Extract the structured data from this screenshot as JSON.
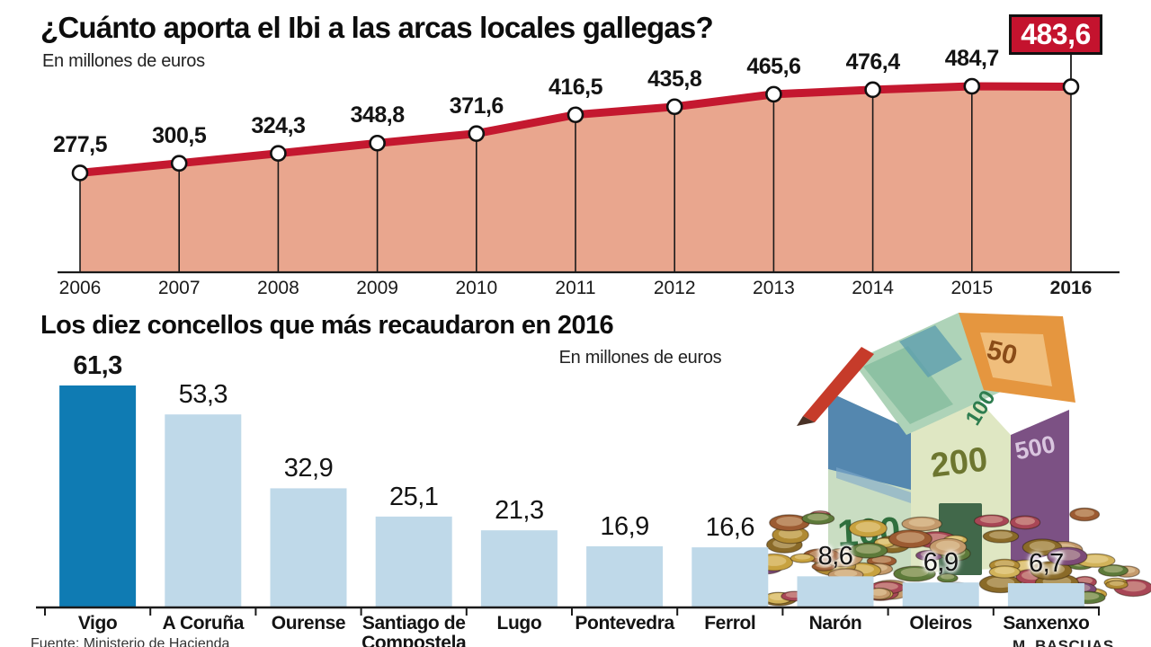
{
  "page": {
    "title": "¿Cuánto aporta el Ibi a las arcas locales gallegas?",
    "units_note": "En millones de euros",
    "source": "Fuente: Ministerio de Hacienda",
    "credit": "M. BASCUAS"
  },
  "colors": {
    "accent_red": "#c4182f",
    "badge_red": "#c4132e",
    "area_salmon": "#e9a68e",
    "bar_highlight": "#0f7bb3",
    "bar_normal": "#bfd9e9",
    "axis_black": "#1a1a1a",
    "coin_palette": [
      "#c8a23f",
      "#b08a33",
      "#8a6a28",
      "#9c5b32",
      "#d2b35a",
      "#a84656",
      "#7c4a78",
      "#5d7a3a",
      "#c49a6c"
    ]
  },
  "illustration": {
    "name": "money-house",
    "denominations": [
      "100",
      "200",
      "500",
      "50"
    ]
  },
  "chart_data": [
    {
      "type": "area",
      "title": "¿Cuánto aporta el Ibi a las arcas locales gallegas?",
      "units": "En millones de euros",
      "x_labels": [
        "2006",
        "2007",
        "2008",
        "2009",
        "2010",
        "2011",
        "2012",
        "2013",
        "2014",
        "2015",
        "2016"
      ],
      "values": [
        277.5,
        300.5,
        324.3,
        348.8,
        371.6,
        416.5,
        435.8,
        465.6,
        476.4,
        484.7,
        483.6
      ],
      "value_labels": [
        "277,5",
        "300,5",
        "324,3",
        "348,8",
        "371,6",
        "416,5",
        "435,8",
        "465,6",
        "476,4",
        "484,7",
        "483,6"
      ],
      "highlight": {
        "index": 10,
        "label": "483,6"
      },
      "ylim": [
        40,
        520
      ],
      "grid": false,
      "legend": "none",
      "colors": {
        "line": "#c4182f",
        "area": "#e9a68e",
        "marker": "#ffffff"
      }
    },
    {
      "type": "bar",
      "title": "Los diez concellos que más recaudaron en 2016",
      "units": "En millones de euros",
      "categories": [
        "Vigo",
        "A Coruña",
        "Ourense",
        "Santiago de Compostela",
        "Lugo",
        "Pontevedra",
        "Ferrol",
        "Narón",
        "Oleiros",
        "Sanxenxo"
      ],
      "values": [
        61.3,
        53.3,
        32.9,
        25.1,
        21.3,
        16.9,
        16.6,
        8.6,
        6.9,
        6.7
      ],
      "value_labels": [
        "61,3",
        "53,3",
        "32,9",
        "25,1",
        "21,3",
        "16,9",
        "16,6",
        "8,6",
        "6,9",
        "6,7"
      ],
      "highlight_index": 0,
      "ylim": [
        0,
        65
      ],
      "grid": false,
      "colors": {
        "bar_highlight": "#0f7bb3",
        "bar": "#bfd9e9"
      }
    }
  ]
}
